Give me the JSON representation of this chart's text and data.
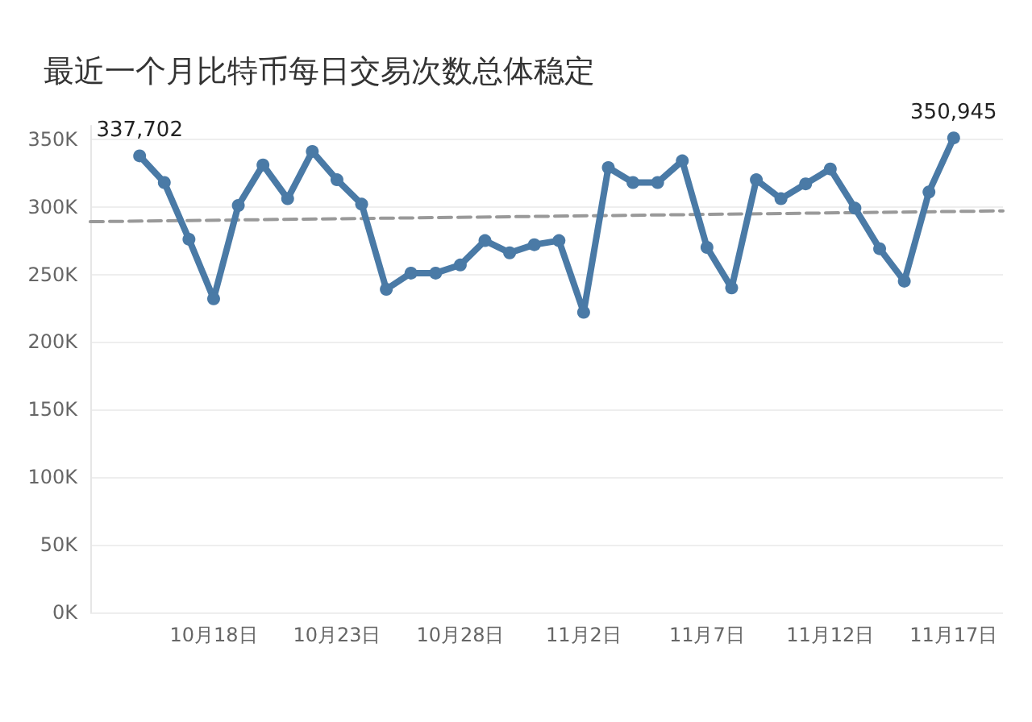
{
  "chart_data": {
    "type": "line",
    "title": "最近一个月比特币每日交易次数总体稳定",
    "x": [
      "--10-15",
      "--10-16",
      "--10-17",
      "--10-18",
      "--10-19",
      "--10-20",
      "--10-21",
      "--10-22",
      "--10-23",
      "--10-24",
      "--10-25",
      "--10-26",
      "--10-27",
      "--10-28",
      "--10-29",
      "--10-30",
      "--10-31",
      "--11-01",
      "--11-02",
      "--11-03",
      "--11-04",
      "--11-05",
      "--11-06",
      "--11-07",
      "--11-08",
      "--11-09",
      "--11-10",
      "--11-11",
      "--11-12",
      "--11-13",
      "--11-14",
      "--11-15",
      "--11-16",
      "--11-17"
    ],
    "series": [
      {
        "color": "#4a7aa6",
        "marker": "circle",
        "line_style": "solid",
        "values": [
          337702,
          318000,
          276000,
          232000,
          301000,
          331000,
          306000,
          341000,
          320000,
          302000,
          239000,
          251000,
          251000,
          257000,
          275000,
          266000,
          272000,
          275000,
          222000,
          329000,
          318000,
          318000,
          334000,
          270000,
          240000,
          320000,
          306000,
          317000,
          328000,
          299000,
          269000,
          245000,
          311000,
          350945
        ],
        "value_labels": [
          "337,702",
          null,
          null,
          null,
          null,
          null,
          null,
          null,
          null,
          null,
          null,
          null,
          null,
          null,
          null,
          null,
          null,
          null,
          null,
          null,
          null,
          null,
          null,
          null,
          null,
          null,
          null,
          null,
          null,
          null,
          null,
          null,
          null,
          "350,945"
        ]
      },
      {
        "type": "line",
        "color": "#999999",
        "marker": "none",
        "line_style": "dashed",
        "x": [
          "--10-13",
          "--11-19"
        ],
        "values": [
          289000,
          297000
        ]
      }
    ],
    "xlim": [
      "--10-13",
      "--11-19"
    ],
    "xticks": [
      {
        "value": "--10-18",
        "label": "10月18日"
      },
      {
        "value": "--10-23",
        "label": "10月23日"
      },
      {
        "value": "--10-28",
        "label": "10月28日"
      },
      {
        "value": "--11-02",
        "label": "11月2日"
      },
      {
        "value": "--11-07",
        "label": "11月7日"
      },
      {
        "value": "--11-12",
        "label": "11月12日"
      },
      {
        "value": "--11-17",
        "label": "11月17日"
      }
    ],
    "ylim": [
      0,
      360000
    ],
    "yticks": [
      {
        "value": 0,
        "label": "0K"
      },
      {
        "value": 50000,
        "label": "50K"
      },
      {
        "value": 100000,
        "label": "100K"
      },
      {
        "value": 150000,
        "label": "150K"
      },
      {
        "value": 200000,
        "label": "200K"
      },
      {
        "value": 250000,
        "label": "250K"
      },
      {
        "value": 300000,
        "label": "300K"
      },
      {
        "value": 350000,
        "label": "350K"
      }
    ],
    "grid": "y"
  }
}
